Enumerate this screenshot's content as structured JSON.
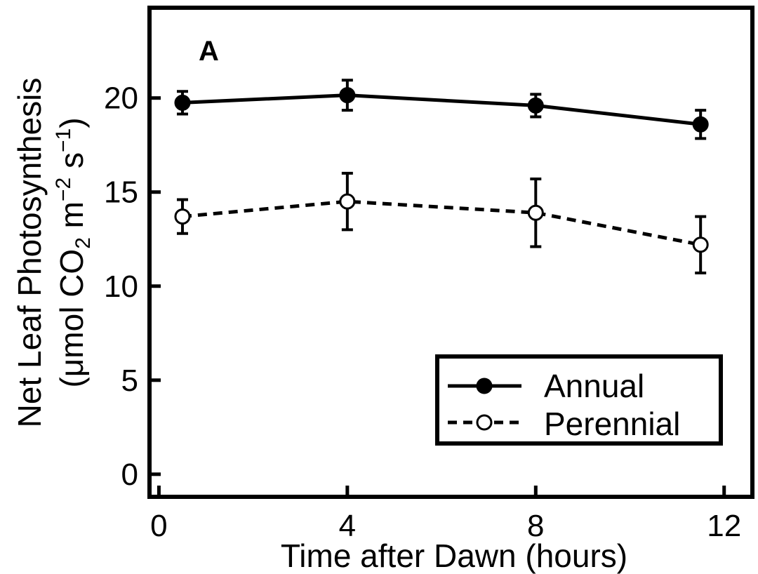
{
  "chart_data": {
    "type": "line",
    "panel_label": "A",
    "xlabel": "Time after Dawn (hours)",
    "ylabel_line1": "Net Leaf Photosynthesis",
    "ylabel_line2": {
      "open": "(",
      "mu": "μ",
      "mol": "mol CO",
      "sub2": "2",
      "m": " m",
      "sup_m": "−2",
      "s": " s",
      "sup_s": "−1",
      "close": ")"
    },
    "xlim": [
      -0.2,
      12.6
    ],
    "ylim": [
      -1.2,
      24.8
    ],
    "xticks": [
      0,
      4,
      8,
      12
    ],
    "yticks": [
      0,
      5,
      10,
      15,
      20
    ],
    "xtick_labels": [
      "0",
      "4",
      "8",
      "12"
    ],
    "ytick_labels": [
      "0",
      "5",
      "10",
      "15",
      "20"
    ],
    "series": [
      {
        "name": "Annual",
        "marker": "filled-circle",
        "line": "solid",
        "x": [
          0.5,
          4,
          8,
          11.5
        ],
        "y": [
          19.75,
          20.15,
          19.6,
          18.6
        ],
        "err": [
          0.6,
          0.8,
          0.6,
          0.75
        ]
      },
      {
        "name": "Perennial",
        "marker": "open-circle",
        "line": "dashed",
        "x": [
          0.5,
          4,
          8,
          11.5
        ],
        "y": [
          13.7,
          14.5,
          13.9,
          12.2
        ],
        "err": [
          0.9,
          1.5,
          1.8,
          1.5
        ]
      }
    ],
    "legend_position": "bottom-right",
    "grid": false
  }
}
